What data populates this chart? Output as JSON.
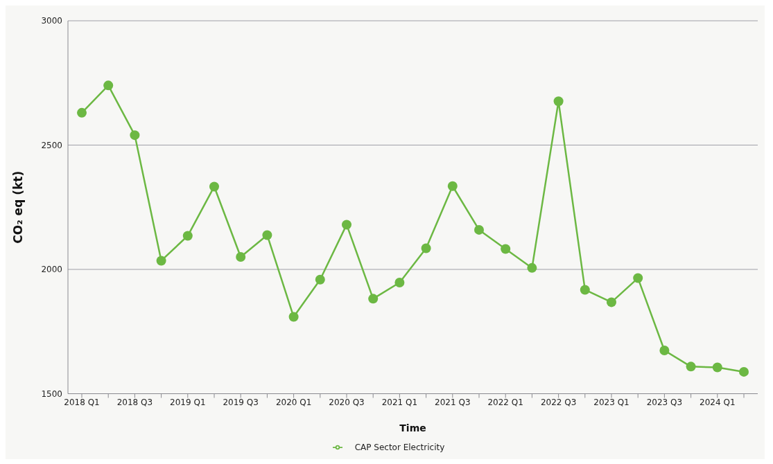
{
  "chart_data": {
    "type": "line",
    "xlabel": "Time",
    "ylabel": "CO₂ eq (kt)",
    "categories": [
      "2018 Q1",
      null,
      "2018 Q3",
      null,
      "2019 Q1",
      null,
      "2019 Q3",
      null,
      "2020 Q1",
      null,
      "2020 Q3",
      null,
      "2021 Q1",
      null,
      "2021 Q3",
      null,
      "2022 Q1",
      null,
      "2022 Q3",
      null,
      "2023 Q1",
      null,
      "2023 Q3",
      null,
      "2024 Q1",
      null
    ],
    "series": [
      {
        "name": "CAP Sector Electricity",
        "color": "#6cb843",
        "values": [
          2630,
          2740,
          2540,
          2035,
          2135,
          2333,
          2050,
          2138,
          1809,
          1959,
          2180,
          1882,
          1947,
          2085,
          2335,
          2159,
          2082,
          2006,
          2676,
          1918,
          1868,
          1965,
          1674,
          1609,
          1606,
          1588
        ]
      }
    ],
    "ylim": [
      1500,
      3000
    ],
    "yticks": [
      1500,
      2000,
      2500,
      3000
    ],
    "grid": "y",
    "legend": "bottom",
    "marker": "circle",
    "line_style": "solid"
  }
}
